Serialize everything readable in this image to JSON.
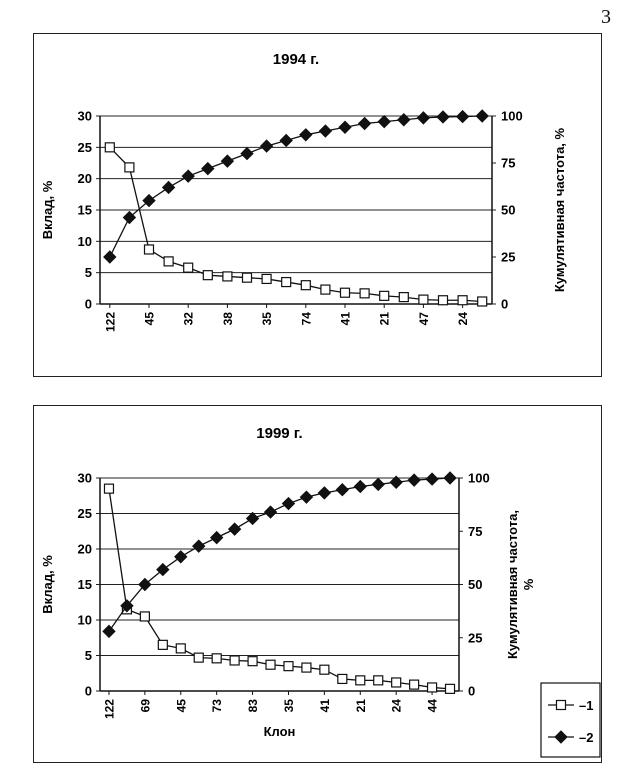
{
  "page_number": "3",
  "chart_data": [
    {
      "type": "line",
      "title": "1994 г.",
      "xlabel": "",
      "ylabel": "Вклад, %",
      "y2label": "Кумулятивная частота, %",
      "ylim": [
        0,
        30
      ],
      "yticks": [
        "0",
        "5",
        "10",
        "15",
        "20",
        "25",
        "30"
      ],
      "y2lim": [
        0,
        100
      ],
      "y2ticks": [
        "0",
        "25",
        "50",
        "75",
        "100"
      ],
      "grid": "horizontal",
      "tick_labels": [
        "122",
        "45",
        "32",
        "38",
        "35",
        "74",
        "41",
        "21",
        "47",
        "24"
      ],
      "tick_positions": [
        1,
        3,
        5,
        7,
        9,
        11,
        13,
        15,
        17,
        19
      ],
      "point_count": 20,
      "series": [
        {
          "legend": "1",
          "marker": "open-square",
          "axis": "left",
          "values": [
            25.0,
            21.8,
            8.7,
            6.8,
            5.8,
            4.6,
            4.4,
            4.2,
            4.0,
            3.5,
            3.0,
            2.3,
            1.8,
            1.7,
            1.3,
            1.1,
            0.7,
            0.6,
            0.6,
            0.4
          ]
        },
        {
          "legend": "2",
          "marker": "filled-diamond",
          "axis": "right",
          "values": [
            25,
            46,
            55,
            62,
            68,
            72,
            76,
            80,
            84,
            87,
            90,
            92,
            94,
            96,
            97,
            98,
            99,
            99.5,
            99.7,
            100
          ]
        }
      ]
    },
    {
      "type": "line",
      "title": "1999 г.",
      "xlabel": "Клон",
      "ylabel": "Вклад, %",
      "y2label": "Кумулятивная частота,\n%",
      "ylim": [
        0,
        30
      ],
      "yticks": [
        "0",
        "5",
        "10",
        "15",
        "20",
        "25",
        "30"
      ],
      "y2lim": [
        0,
        100
      ],
      "y2ticks": [
        "0",
        "25",
        "50",
        "75",
        "100"
      ],
      "grid": "horizontal",
      "tick_labels": [
        "122",
        "69",
        "45",
        "73",
        "83",
        "35",
        "41",
        "21",
        "24",
        "44"
      ],
      "tick_positions": [
        1,
        3,
        5,
        7,
        9,
        11,
        13,
        15,
        17,
        19
      ],
      "point_count": 20,
      "series": [
        {
          "legend": "1",
          "marker": "open-square",
          "axis": "left",
          "values": [
            28.5,
            11.5,
            10.5,
            6.5,
            6.0,
            4.7,
            4.6,
            4.3,
            4.2,
            3.7,
            3.5,
            3.3,
            3.0,
            1.7,
            1.5,
            1.5,
            1.2,
            0.9,
            0.5,
            0.3
          ]
        },
        {
          "legend": "2",
          "marker": "filled-diamond",
          "axis": "right",
          "values": [
            28,
            40,
            50,
            57,
            63,
            68,
            72,
            76,
            81,
            84,
            88,
            91,
            93,
            94.5,
            96,
            97,
            98,
            99,
            99.5,
            100
          ]
        }
      ],
      "legend": {
        "placement": "bottom-right",
        "entries": [
          "1",
          "2"
        ]
      }
    }
  ]
}
